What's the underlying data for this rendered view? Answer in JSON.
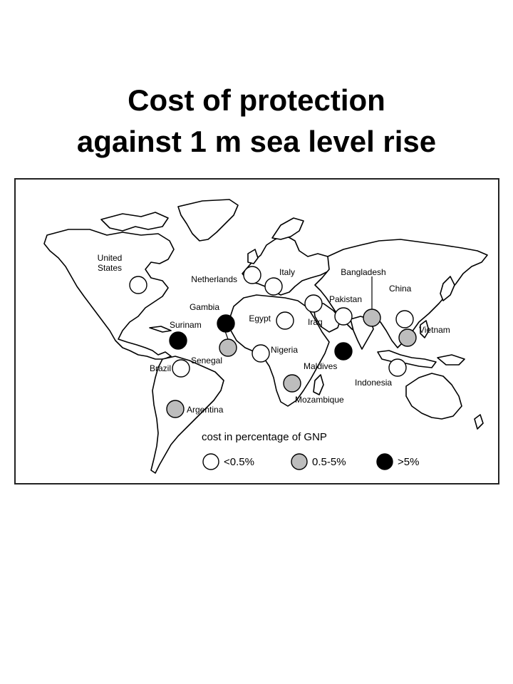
{
  "title": {
    "line1": "Cost of protection",
    "line2": "against 1 m sea level rise"
  },
  "legend": {
    "title": "cost in percentage of GNP",
    "items": [
      {
        "label": "<0.5%",
        "category": "low"
      },
      {
        "label": "0.5-5%",
        "category": "medium"
      },
      {
        "label": ">5%",
        "category": "high"
      }
    ]
  },
  "colors": {
    "low": "#ffffff",
    "medium": "#bdbdbd",
    "high": "#000000",
    "outline": "#000000"
  },
  "countries": [
    {
      "name": "United States",
      "label": [
        "United",
        "States"
      ],
      "category": "low"
    },
    {
      "name": "Netherlands",
      "label": [
        "Netherlands"
      ],
      "category": "low"
    },
    {
      "name": "Italy",
      "label": [
        "Italy"
      ],
      "category": "low"
    },
    {
      "name": "Gambia",
      "label": [
        "Gambia"
      ],
      "category": "high"
    },
    {
      "name": "Surinam",
      "label": [
        "Surinam"
      ],
      "category": "high"
    },
    {
      "name": "Senegal",
      "label": [
        "Senegal"
      ],
      "category": "medium"
    },
    {
      "name": "Egypt",
      "label": [
        "Egypt"
      ],
      "category": "low"
    },
    {
      "name": "Iraq",
      "label": [
        "Iraq"
      ],
      "category": "low"
    },
    {
      "name": "Pakistan",
      "label": [
        "Pakistan"
      ],
      "category": "low"
    },
    {
      "name": "Bangladesh",
      "label": [
        "Bangladesh"
      ],
      "category": "medium"
    },
    {
      "name": "China",
      "label": [
        "China"
      ],
      "category": "low"
    },
    {
      "name": "Vietnam",
      "label": [
        "Vietnam"
      ],
      "category": "medium"
    },
    {
      "name": "Nigeria",
      "label": [
        "Nigeria"
      ],
      "category": "low"
    },
    {
      "name": "Brazil",
      "label": [
        "Brazil"
      ],
      "category": "low"
    },
    {
      "name": "Maldives",
      "label": [
        "Maldives"
      ],
      "category": "high"
    },
    {
      "name": "Indonesia",
      "label": [
        "Indonesia"
      ],
      "category": "low"
    },
    {
      "name": "Mozambique",
      "label": [
        "Mozambique"
      ],
      "category": "medium"
    },
    {
      "name": "Argentina",
      "label": [
        "Argentina"
      ],
      "category": "medium"
    }
  ]
}
